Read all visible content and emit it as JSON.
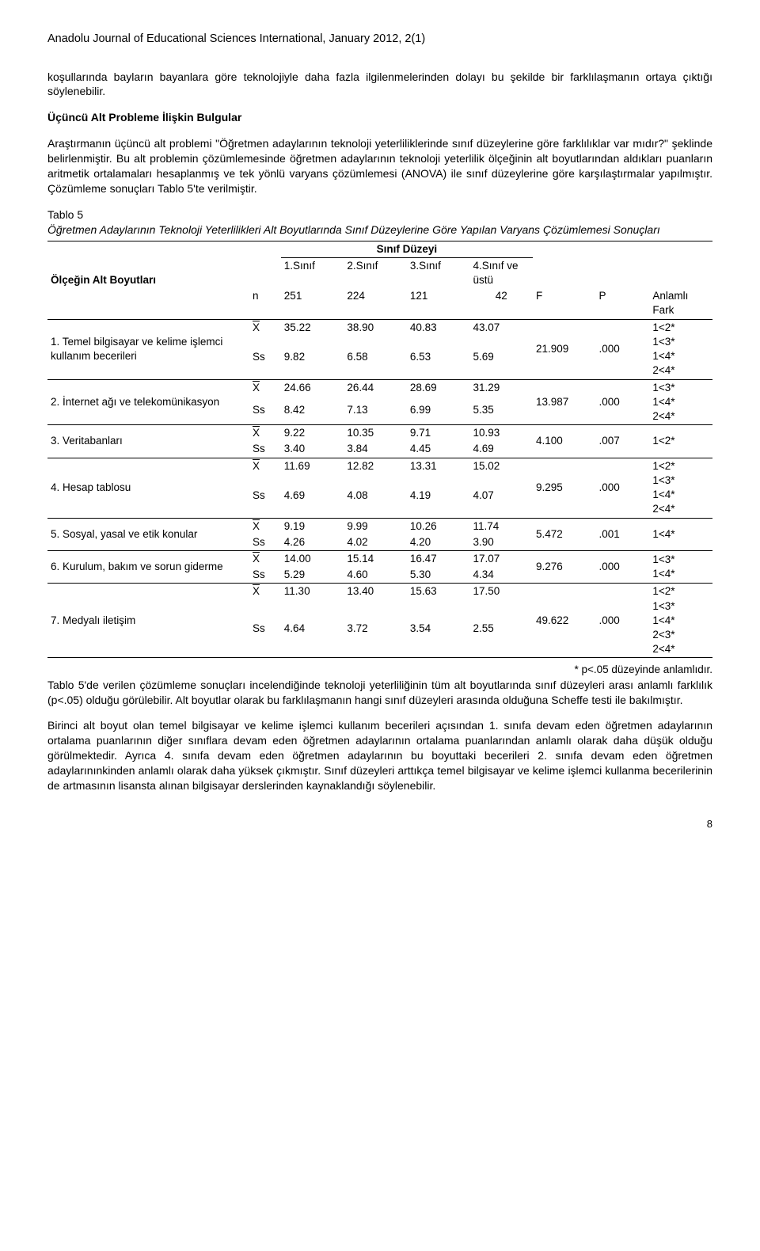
{
  "header": "Anadolu Journal of Educational Sciences International, January 2012, 2(1)",
  "para1": "koşullarında bayların bayanlara göre teknolojiyle daha fazla ilgilenmelerinden dolayı bu şekilde bir farklılaşmanın ortaya çıktığı söylenebilir.",
  "section_title": "Üçüncü Alt Probleme İlişkin Bulgular",
  "para2": "Araştırmanın üçüncü alt problemi \"Öğretmen adaylarının teknoloji yeterliliklerinde sınıf düzeylerine göre farklılıklar var mıdır?\" şeklinde belirlenmiştir. Bu alt problemin çözümlemesinde öğretmen adaylarının teknoloji yeterlilik ölçeğinin alt boyutlarından aldıkları puanların aritmetik ortalamaları hesaplanmış ve tek yönlü varyans çözümlemesi (ANOVA) ile sınıf düzeylerine göre karşılaştırmalar yapılmıştır. Çözümleme sonuçları Tablo 5'te verilmiştir.",
  "caption1": "Tablo 5",
  "caption2": "Öğretmen Adaylarının Teknoloji Yeterlilikleri Alt Boyutlarında Sınıf Düzeylerine Göre Yapılan Varyans Çözümlemesi Sonuçları",
  "th": {
    "col_label": "Ölçeğin Alt Boyutları",
    "grade_level": "Sınıf Düzeyi",
    "g1": "1.Sınıf",
    "g2": "2.Sınıf",
    "g3": "3.Sınıf",
    "g4": "4.Sınıf ve üstü",
    "n": "n",
    "F": "F",
    "P": "P",
    "diff": "Anlamlı Fark",
    "Ss": "Ss"
  },
  "n": {
    "g1": "251",
    "g2": "224",
    "g3": "121",
    "g4": "42"
  },
  "rows": [
    {
      "label": "1. Temel bilgisayar ve kelime işlemci kullanım becerileri",
      "x": [
        "35.22",
        "38.90",
        "40.83",
        "43.07"
      ],
      "s": [
        "9.82",
        "6.58",
        "6.53",
        "5.69"
      ],
      "F": "21.909",
      "P": ".000",
      "diff": "1<2*\n1<3*\n1<4*\n2<4*"
    },
    {
      "label": "2. İnternet ağı ve telekomünikasyon",
      "x": [
        "24.66",
        "26.44",
        "28.69",
        "31.29"
      ],
      "s": [
        "8.42",
        "7.13",
        "6.99",
        "5.35"
      ],
      "F": "13.987",
      "P": ".000",
      "diff": "1<3*\n1<4*\n2<4*"
    },
    {
      "label": "3. Veritabanları",
      "x": [
        "9.22",
        "10.35",
        "9.71",
        "10.93"
      ],
      "s": [
        "3.40",
        "3.84",
        "4.45",
        "4.69"
      ],
      "F": "4.100",
      "P": ".007",
      "diff": "1<2*"
    },
    {
      "label": "4. Hesap tablosu",
      "x": [
        "11.69",
        "12.82",
        "13.31",
        "15.02"
      ],
      "s": [
        "4.69",
        "4.08",
        "4.19",
        "4.07"
      ],
      "F": "9.295",
      "P": ".000",
      "diff": "1<2*\n1<3*\n1<4*\n2<4*"
    },
    {
      "label": "5. Sosyal, yasal ve etik konular",
      "x": [
        "9.19",
        "9.99",
        "10.26",
        "11.74"
      ],
      "s": [
        "4.26",
        "4.02",
        "4.20",
        "3.90"
      ],
      "F": "5.472",
      "P": ".001",
      "diff": "1<4*"
    },
    {
      "label": "6. Kurulum, bakım ve sorun giderme",
      "x": [
        "14.00",
        "15.14",
        "16.47",
        "17.07"
      ],
      "s": [
        "5.29",
        "4.60",
        "5.30",
        "4.34"
      ],
      "F": "9.276",
      "P": ".000",
      "diff": "1<3*\n1<4*"
    },
    {
      "label": "7. Medyalı iletişim",
      "x": [
        "11.30",
        "13.40",
        "15.63",
        "17.50"
      ],
      "s": [
        "4.64",
        "3.72",
        "3.54",
        "2.55"
      ],
      "F": "49.622",
      "P": ".000",
      "diff": "1<2*\n1<3*\n1<4*\n2<3*\n2<4*"
    }
  ],
  "footnote": "* p<.05 düzeyinde anlamlıdır.",
  "para3": "Tablo 5'de verilen çözümleme sonuçları incelendiğinde teknoloji yeterliliğinin tüm alt boyutlarında sınıf düzeyleri arası anlamlı farklılık (p<.05) olduğu görülebilir. Alt boyutlar olarak bu farklılaşmanın hangi sınıf düzeyleri arasında olduğuna Scheffe testi ile bakılmıştır.",
  "para4": "Birinci alt boyut olan temel bilgisayar ve kelime işlemci kullanım becerileri açısından 1. sınıfa devam eden öğretmen adaylarının ortalama puanlarının diğer sınıflara devam eden öğretmen adaylarının ortalama puanlarından anlamlı olarak daha düşük olduğu görülmektedir. Ayrıca 4. sınıfa devam eden öğretmen adaylarının bu boyuttaki becerileri 2. sınıfa devam eden öğretmen adaylarınınkinden anlamlı olarak daha yüksek çıkmıştır. Sınıf düzeyleri arttıkça temel bilgisayar ve kelime işlemci kullanma becerilerinin de artmasının lisansta alınan bilgisayar derslerinden kaynaklandığı söylenebilir.",
  "page": "8"
}
